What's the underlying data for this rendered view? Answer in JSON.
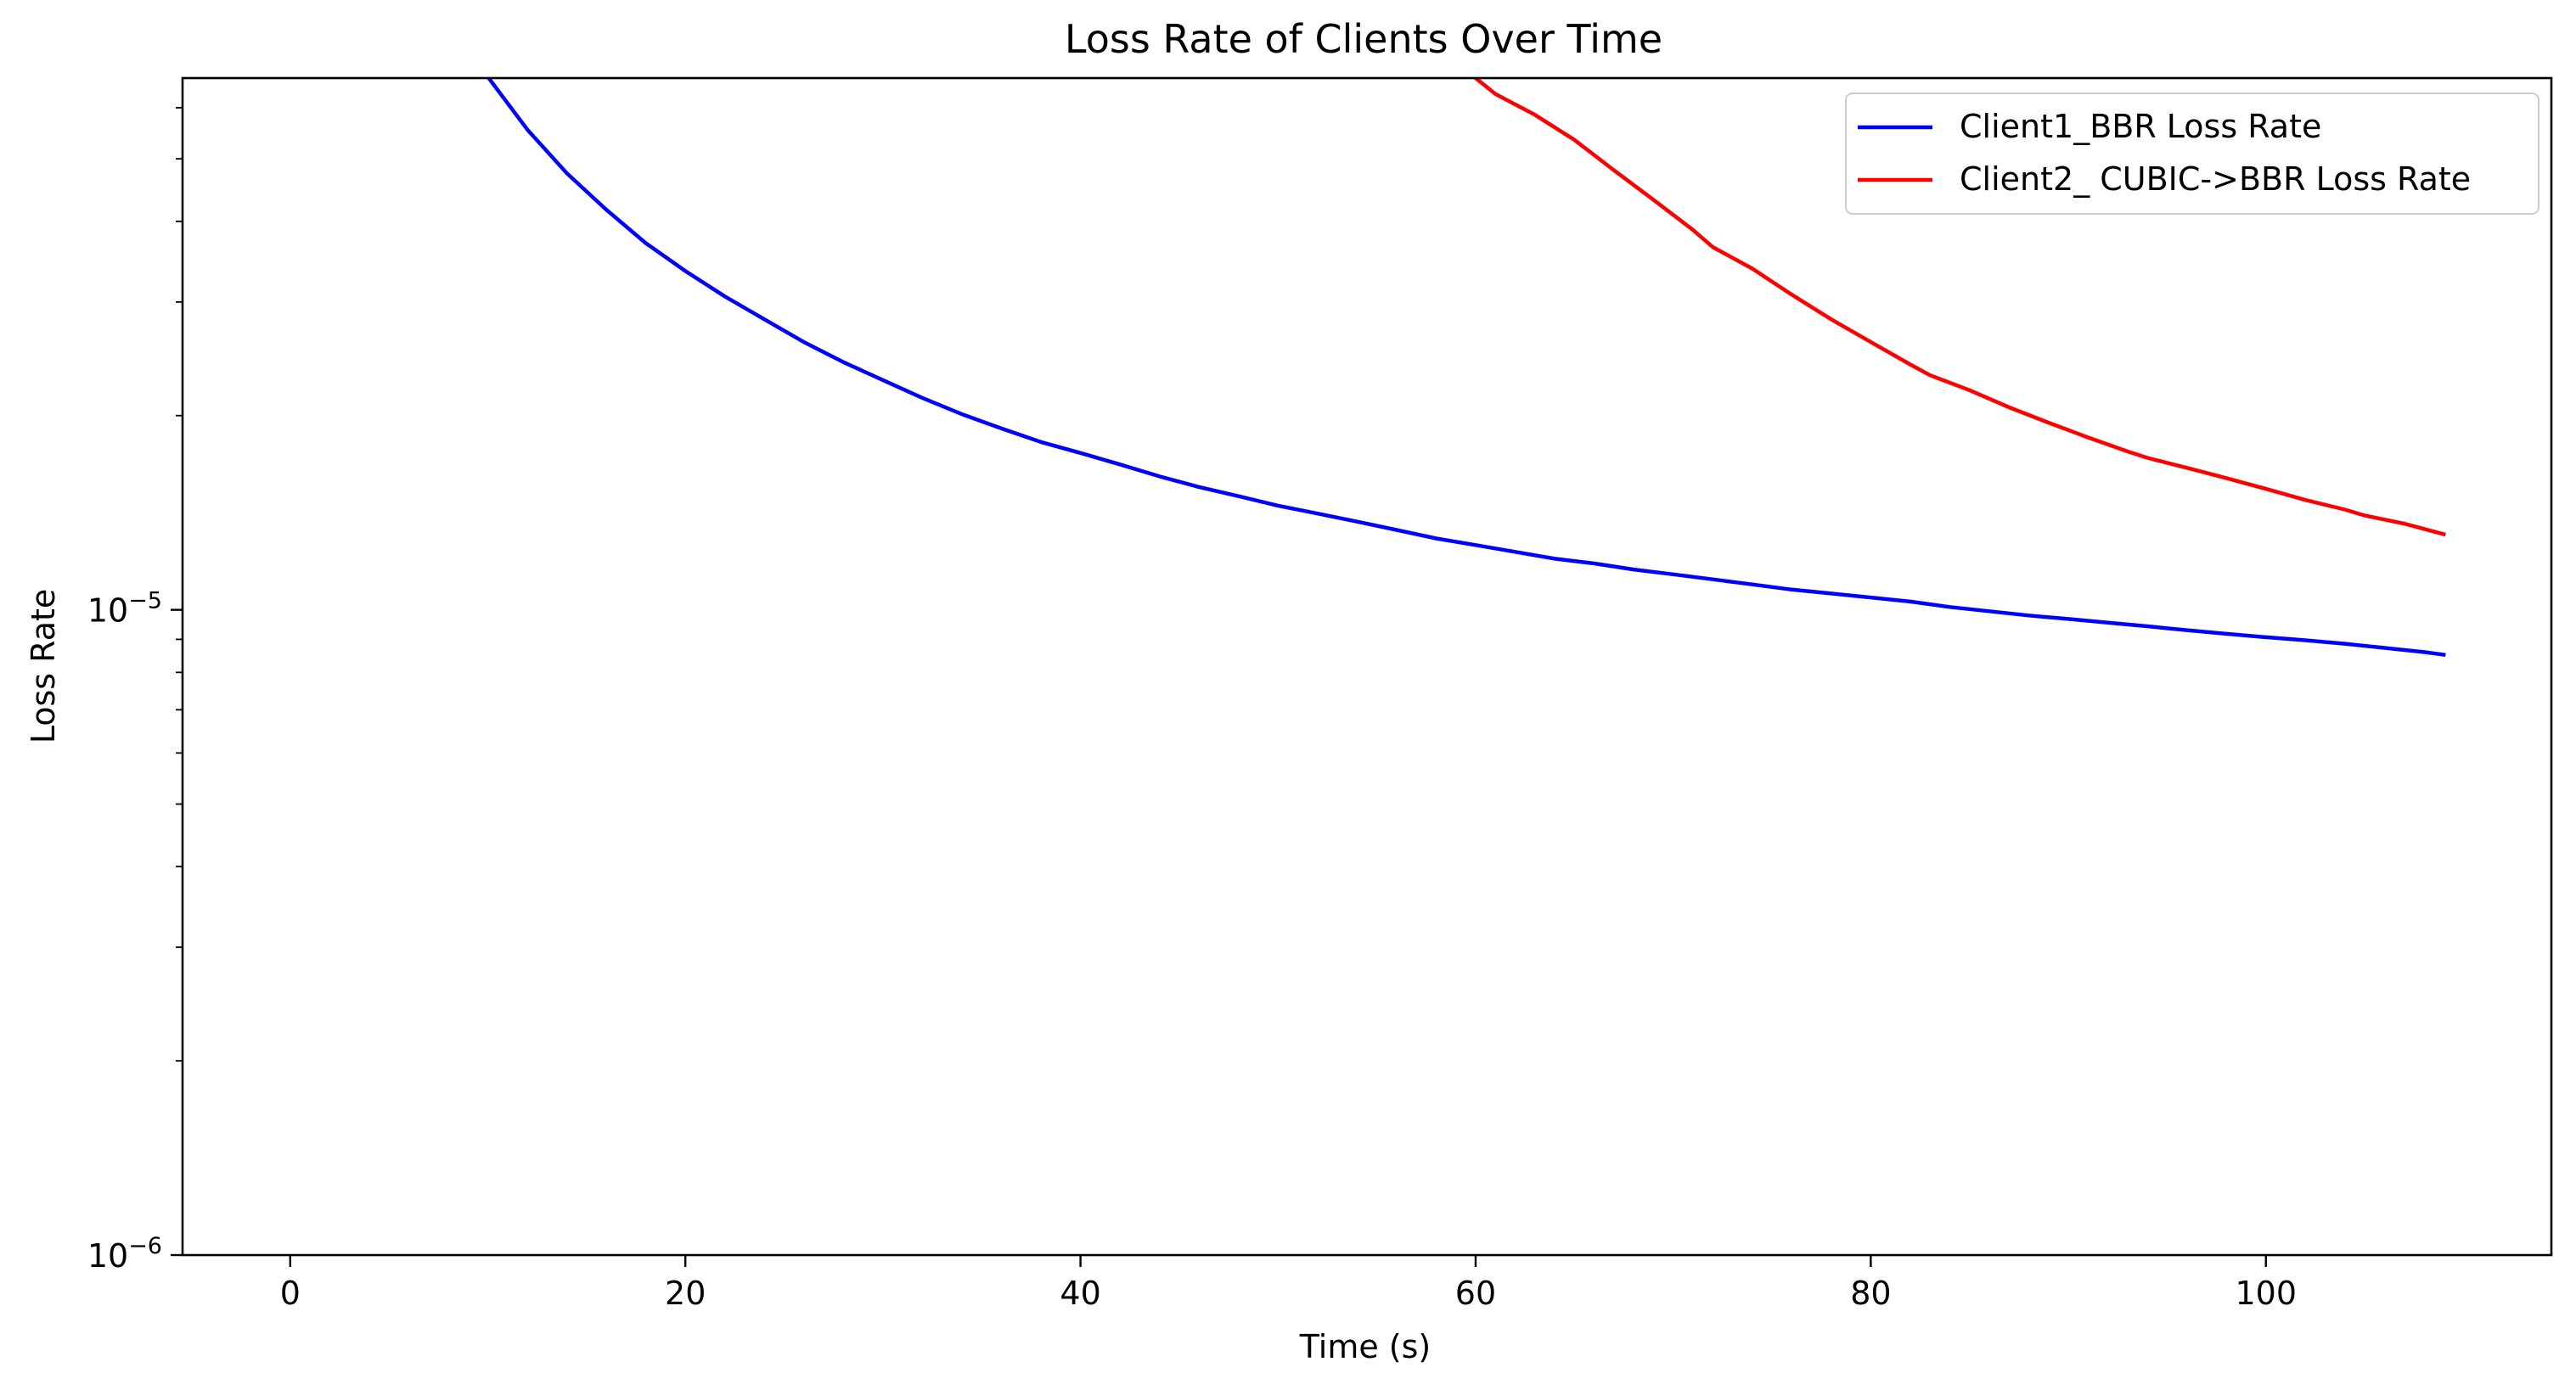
{
  "chart_data": {
    "type": "line",
    "title": "Loss Rate of Clients Over Time",
    "xlabel": "Time (s)",
    "ylabel": "Loss Rate",
    "yscale": "log",
    "xlim": [
      -5.45,
      114.45
    ],
    "ylim": [
      1e-06,
      6.67e-05
    ],
    "xticks": [
      0,
      20,
      40,
      60,
      80,
      100
    ],
    "xtick_labels": [
      "0",
      "20",
      "40",
      "60",
      "80",
      "100"
    ],
    "yticks": [
      1e-06,
      1e-05
    ],
    "ytick_labels": [
      {
        "base": "10",
        "exp": "−6"
      },
      {
        "base": "10",
        "exp": "−5"
      }
    ],
    "grid": false,
    "legend_position": "upper right",
    "series": [
      {
        "name": "Client1_BBR Loss Rate",
        "color": "#0000ff",
        "x": [
          10,
          12,
          14,
          16,
          18,
          20,
          22,
          24,
          26,
          28,
          30,
          32,
          34,
          36,
          38,
          40,
          42,
          44,
          46,
          48,
          50,
          52,
          54,
          56,
          58,
          60,
          62,
          64,
          66,
          68,
          70,
          72,
          74,
          76,
          78,
          80,
          82,
          84,
          86,
          88,
          90,
          92,
          94,
          96,
          98,
          100,
          102,
          104,
          106,
          108,
          109
        ],
        "y": [
          6.7e-05,
          5.55e-05,
          4.75e-05,
          4.17e-05,
          3.7e-05,
          3.35e-05,
          3.06e-05,
          2.82e-05,
          2.6e-05,
          2.42e-05,
          2.27e-05,
          2.13e-05,
          2.01e-05,
          1.91e-05,
          1.82e-05,
          1.75e-05,
          1.68e-05,
          1.61e-05,
          1.55e-05,
          1.5e-05,
          1.45e-05,
          1.41e-05,
          1.37e-05,
          1.33e-05,
          1.29e-05,
          1.26e-05,
          1.23e-05,
          1.2e-05,
          1.18e-05,
          1.155e-05,
          1.135e-05,
          1.115e-05,
          1.095e-05,
          1.075e-05,
          1.06e-05,
          1.045e-05,
          1.03e-05,
          1.01e-05,
          9.95e-06,
          9.8e-06,
          9.68e-06,
          9.55e-06,
          9.43e-06,
          9.3e-06,
          9.18e-06,
          9.07e-06,
          8.97e-06,
          8.86e-06,
          8.73e-06,
          8.6e-06,
          8.52e-06
        ]
      },
      {
        "name": "Client2_ CUBIC->BBR Loss Rate",
        "color": "#ff0000",
        "x": [
          60,
          61,
          63,
          65,
          67,
          69,
          71,
          72,
          74,
          76,
          78,
          80,
          82,
          83,
          85,
          87,
          89,
          91,
          93,
          94,
          96,
          98,
          100,
          102,
          104,
          105,
          107,
          109
        ],
        "y": [
          6.67e-05,
          6.3e-05,
          5.85e-05,
          5.35e-05,
          4.8e-05,
          4.32e-05,
          3.88e-05,
          3.65e-05,
          3.38e-05,
          3.08e-05,
          2.82e-05,
          2.6e-05,
          2.4e-05,
          2.31e-05,
          2.19e-05,
          2.06e-05,
          1.95e-05,
          1.85e-05,
          1.76e-05,
          1.72e-05,
          1.66e-05,
          1.6e-05,
          1.54e-05,
          1.48e-05,
          1.43e-05,
          1.4e-05,
          1.36e-05,
          1.31e-05
        ]
      }
    ]
  }
}
